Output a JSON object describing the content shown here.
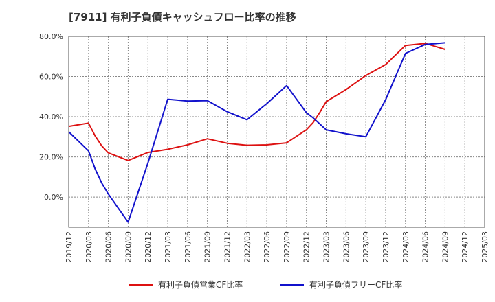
{
  "chart_data": {
    "type": "line",
    "title": "[7911]  有利子負債キャッシュフロー比率の推移",
    "x": [
      "2019/12",
      "2020/03",
      "2020/04",
      "2020/05",
      "2020/06",
      "2020/09",
      "2020/12",
      "2021/03",
      "2021/06",
      "2021/09",
      "2021/12",
      "2022/03",
      "2022/06",
      "2022/09",
      "2022/12",
      "2023/01",
      "2023/02",
      "2023/03",
      "2023/06",
      "2023/09",
      "2023/12",
      "2024/03",
      "2024/06",
      "2024/09"
    ],
    "x_ticks": [
      "2019/12",
      "2020/03",
      "2020/06",
      "2020/09",
      "2020/12",
      "2021/03",
      "2021/06",
      "2021/09",
      "2021/12",
      "2022/03",
      "2022/06",
      "2022/09",
      "2022/12",
      "2023/03",
      "2023/06",
      "2023/09",
      "2023/12",
      "2024/03",
      "2024/06",
      "2024/09",
      "2024/12",
      "2025/03"
    ],
    "xlim": [
      "2019/12",
      "2025/03"
    ],
    "y_ticks": [
      0,
      20,
      40,
      60,
      80
    ],
    "y_tick_labels": [
      "0.0%",
      "20.0%",
      "40.0%",
      "60.0%",
      "80.0%"
    ],
    "ylim": [
      -15,
      80
    ],
    "grid": true,
    "legend_position": "bottom",
    "series": [
      {
        "name": "有利子負債営業CF比率",
        "color": "#dd1111",
        "values": [
          35.2,
          36.8,
          30.5,
          25.5,
          22.0,
          18.2,
          22.2,
          23.8,
          26.0,
          29.0,
          26.8,
          25.8,
          26.0,
          27.0,
          33.5,
          37.0,
          42.0,
          47.5,
          53.5,
          60.5,
          66.0,
          75.5,
          76.5,
          73.5
        ]
      },
      {
        "name": "有利子負債フリーCF比率",
        "color": "#1111cc",
        "values": [
          32.5,
          23.0,
          14.0,
          7.0,
          1.5,
          -12.5,
          17.0,
          48.7,
          47.8,
          48.0,
          42.5,
          38.5,
          46.5,
          55.5,
          42.0,
          39.5,
          36.5,
          33.5,
          31.5,
          30.0,
          48.5,
          71.5,
          76.0,
          76.8
        ]
      }
    ]
  }
}
